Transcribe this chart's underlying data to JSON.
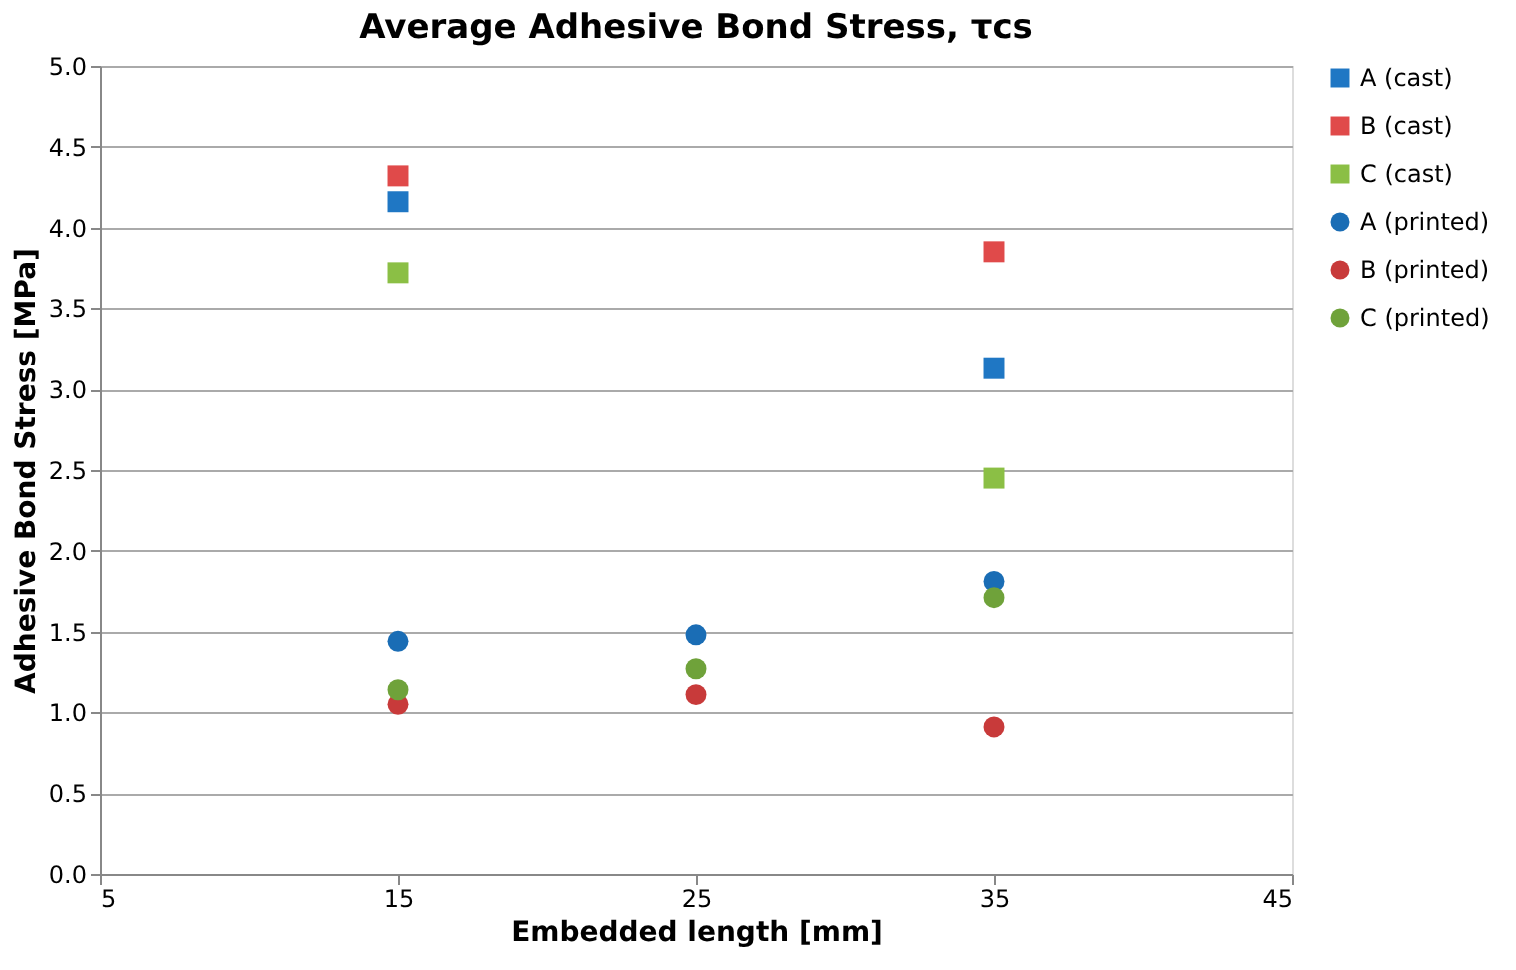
{
  "chart_data": {
    "type": "scatter",
    "title": "Average Adhesive Bond Stress, τcs",
    "xlabel": "Embedded length [mm]",
    "ylabel": "Adhesive Bond Stress [MPa]",
    "xlim": [
      5,
      45
    ],
    "xticks": [
      5,
      15,
      25,
      35,
      45
    ],
    "ylim": [
      0,
      5
    ],
    "yticks": [
      {
        "value": 0,
        "label": "0.0"
      },
      {
        "value": 0.5,
        "label": "0.5"
      },
      {
        "value": 1,
        "label": "1.0"
      },
      {
        "value": 1.5,
        "label": "1.5"
      },
      {
        "value": 2,
        "label": "2.0"
      },
      {
        "value": 2.5,
        "label": "2.5"
      },
      {
        "value": 3,
        "label": "3.0"
      },
      {
        "value": 3.5,
        "label": "3.5"
      },
      {
        "value": 4,
        "label": "4.0"
      },
      {
        "value": 4.5,
        "label": "4.5"
      },
      {
        "value": 5,
        "label": "5.0"
      }
    ],
    "grid": "y",
    "legend": "right",
    "series": [
      {
        "name": "A (cast)",
        "color": "#1f77c4",
        "marker": "square",
        "x": [
          15,
          35
        ],
        "values": [
          4.16,
          3.13
        ]
      },
      {
        "name": "B (cast)",
        "color": "#e04a4a",
        "marker": "square",
        "x": [
          15,
          35
        ],
        "values": [
          4.32,
          3.85
        ]
      },
      {
        "name": "C (cast)",
        "color": "#8bbf45",
        "marker": "square",
        "x": [
          15,
          35
        ],
        "values": [
          3.72,
          2.45
        ]
      },
      {
        "name": "A (printed)",
        "color": "#1a6db5",
        "marker": "circle",
        "x": [
          15,
          25,
          35
        ],
        "values": [
          1.44,
          1.48,
          1.81
        ]
      },
      {
        "name": "B (printed)",
        "color": "#c83a3a",
        "marker": "circle",
        "x": [
          15,
          25,
          35
        ],
        "values": [
          1.05,
          1.11,
          0.91
        ]
      },
      {
        "name": "C (printed)",
        "color": "#6fa23a",
        "marker": "circle",
        "x": [
          15,
          25,
          35
        ],
        "values": [
          1.14,
          1.27,
          1.71
        ]
      }
    ]
  }
}
